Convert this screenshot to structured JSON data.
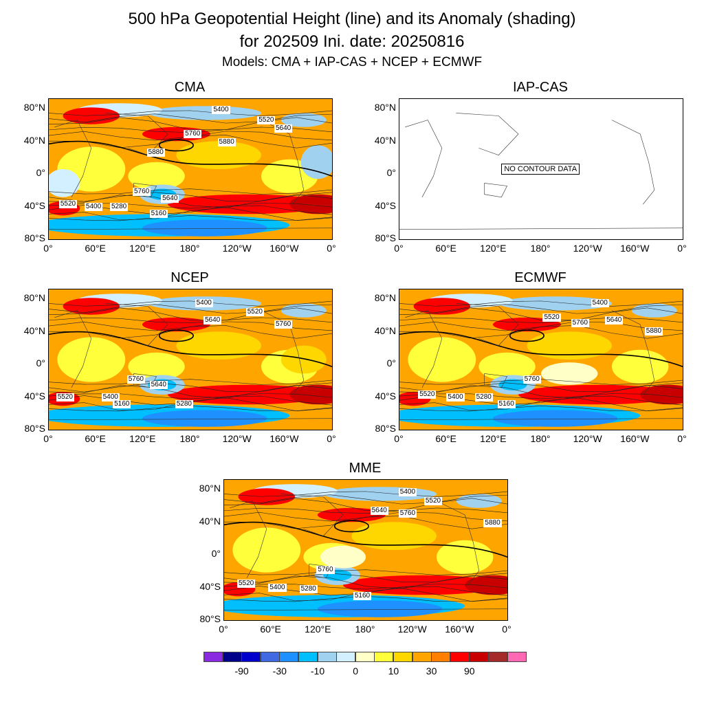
{
  "title_line1": "500 hPa Geopotential Height (line) and its Anomaly (shading)",
  "title_line2": "for 202509 Ini. date: 20250816",
  "title_line3": "Models: CMA + IAP-CAS + NCEP + ECMWF",
  "y_ticks": [
    "80°N",
    "40°N",
    "0°",
    "40°S",
    "80°S"
  ],
  "x_ticks": [
    "0°",
    "60°E",
    "120°E",
    "180°",
    "120°W",
    "160°W",
    "0°"
  ],
  "panels": [
    {
      "name": "CMA",
      "has_data": true,
      "contour_labels": [
        "5400",
        "5520",
        "5640",
        "5760",
        "5880",
        "5880",
        "5760",
        "5640",
        "5520",
        "5400",
        "5280",
        "5160"
      ]
    },
    {
      "name": "IAP-CAS",
      "has_data": false,
      "nodata_text": "NO CONTOUR DATA"
    },
    {
      "name": "NCEP",
      "has_data": true,
      "contour_labels": [
        "5400",
        "5520",
        "5640",
        "5760",
        "5760",
        "5640",
        "5520",
        "5400",
        "5160",
        "5280"
      ]
    },
    {
      "name": "ECMWF",
      "has_data": true,
      "contour_labels": [
        "5400",
        "5520",
        "5640",
        "5760",
        "5880",
        "5760",
        "5520",
        "5400",
        "5280",
        "5160"
      ]
    },
    {
      "name": "MME",
      "has_data": true,
      "contour_labels": [
        "5400",
        "5520",
        "5640",
        "5760",
        "5880",
        "5760",
        "5520",
        "5400",
        "5280",
        "5160"
      ]
    }
  ],
  "legend": {
    "colors": [
      "#8a2be2",
      "#00008b",
      "#0000cd",
      "#4169e1",
      "#1e90ff",
      "#00bfff",
      "#a0d2f0",
      "#d2f0ff",
      "#ffffc8",
      "#ffff3c",
      "#ffd700",
      "#ffa500",
      "#ff7f00",
      "#ff0000",
      "#c80000",
      "#a52a2a",
      "#ff69b4"
    ],
    "labels": [
      "-90",
      "-30",
      "-10",
      "0",
      "10",
      "30",
      "90"
    ]
  }
}
